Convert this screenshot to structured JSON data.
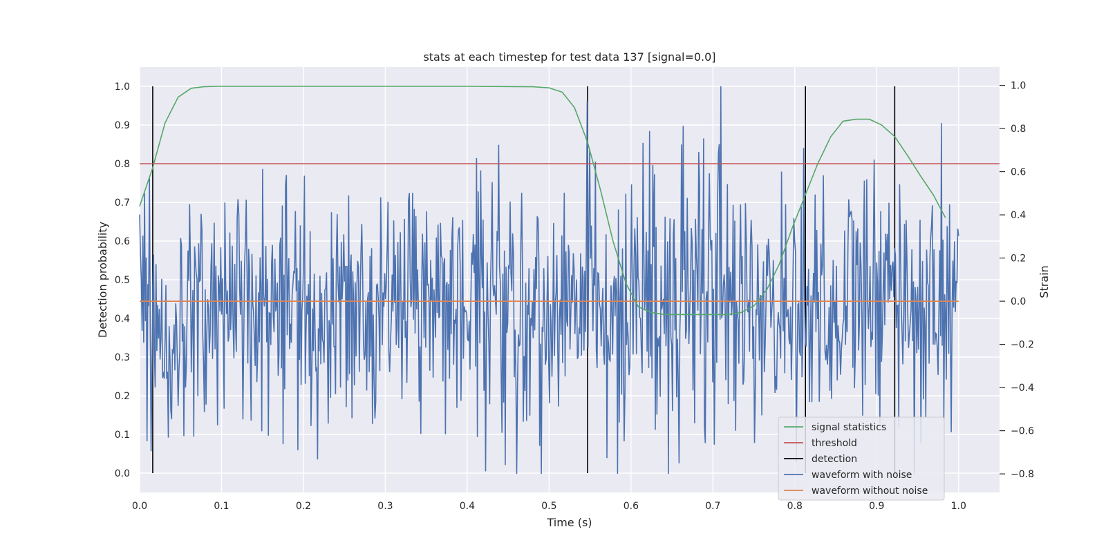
{
  "chart_data": {
    "type": "line",
    "title": "stats at each timestep for test data 137 [signal=0.0]",
    "xlabel": "Time (s)",
    "ylabel_left": "Detection probability",
    "ylabel_right": "Strain",
    "xlim": [
      0.0,
      1.05
    ],
    "ylim_left": [
      -0.05,
      1.05
    ],
    "ylim_right": [
      -0.886,
      1.085
    ],
    "x_ticks": [
      "0.0",
      "0.1",
      "0.2",
      "0.3",
      "0.4",
      "0.5",
      "0.6",
      "0.7",
      "0.8",
      "0.9",
      "1.0"
    ],
    "y_ticks_left": [
      "0.0",
      "0.1",
      "0.2",
      "0.3",
      "0.4",
      "0.5",
      "0.6",
      "0.7",
      "0.8",
      "0.9",
      "1.0"
    ],
    "y_ticks_right": [
      "−0.8",
      "−0.6",
      "−0.4",
      "−0.2",
      "0.0",
      "0.2",
      "0.4",
      "0.6",
      "0.8",
      "1.0"
    ],
    "grid": true,
    "legend_position": "lower-right",
    "series": [
      {
        "name": "signal statistics",
        "axis": "left",
        "color": "#55a868",
        "x": [
          0.0,
          0.016,
          0.031,
          0.047,
          0.063,
          0.078,
          0.094,
          0.11,
          0.2,
          0.3,
          0.4,
          0.48,
          0.5,
          0.516,
          0.531,
          0.547,
          0.563,
          0.578,
          0.594,
          0.609,
          0.625,
          0.641,
          0.656,
          0.672,
          0.688,
          0.703,
          0.719,
          0.734,
          0.75,
          0.766,
          0.781,
          0.797,
          0.813,
          0.828,
          0.844,
          0.859,
          0.875,
          0.891,
          0.906,
          0.922,
          0.938,
          0.953,
          0.969,
          0.984
        ],
        "y": [
          0.69,
          0.79,
          0.905,
          0.972,
          0.995,
          0.999,
          1.0,
          1.0,
          1.0,
          1.0,
          1.0,
          0.999,
          0.996,
          0.985,
          0.945,
          0.855,
          0.73,
          0.6,
          0.49,
          0.43,
          0.415,
          0.41,
          0.41,
          0.41,
          0.41,
          0.41,
          0.41,
          0.415,
          0.432,
          0.475,
          0.54,
          0.635,
          0.72,
          0.8,
          0.87,
          0.91,
          0.915,
          0.915,
          0.9,
          0.87,
          0.82,
          0.77,
          0.72,
          0.66
        ]
      },
      {
        "name": "threshold",
        "axis": "left",
        "color": "#c44e52",
        "x": [
          0.0,
          1.05
        ],
        "y": [
          0.8,
          0.8
        ]
      },
      {
        "name": "detection",
        "axis": "left",
        "color": "#000000",
        "x_lines": [
          0.016,
          0.547,
          0.813,
          0.922
        ],
        "y_range": [
          0.0,
          1.0
        ]
      },
      {
        "name": "waveform with noise",
        "axis": "right",
        "color": "#4c72b0",
        "x_range": [
          0.0,
          1.0
        ],
        "n_points": 1000,
        "y_min": -0.8,
        "y_max": 1.03
      },
      {
        "name": "waveform without noise",
        "axis": "right",
        "color": "#dd8452",
        "x": [
          0.0,
          1.0
        ],
        "y": [
          0.0,
          0.0
        ]
      }
    ]
  }
}
